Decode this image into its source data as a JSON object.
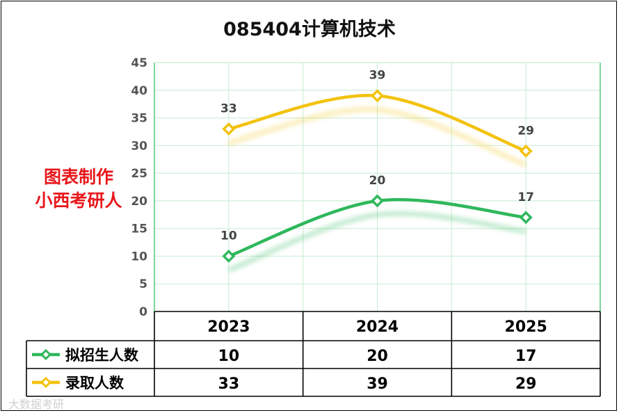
{
  "title": "085404计算机技术",
  "watermark_text": [
    "图表制作",
    "小西考研人"
  ],
  "footer_mark": "大数据考研",
  "colors": {
    "green": "#2fb85c",
    "yellow": "#f2c20d",
    "grid": "#cfeed8"
  },
  "chart_data": {
    "type": "line",
    "categories": [
      "2023",
      "2024",
      "2025"
    ],
    "series": [
      {
        "name": "拟招生人数",
        "values": [
          10,
          20,
          17
        ],
        "color": "#2fb85c"
      },
      {
        "name": "录取人数",
        "values": [
          33,
          39,
          29
        ],
        "color": "#f2c20d"
      }
    ],
    "ylim": [
      0,
      45
    ],
    "yticks": [
      0,
      5,
      10,
      15,
      20,
      25,
      30,
      35,
      40,
      45
    ],
    "grid": true,
    "legend": "data-table"
  }
}
